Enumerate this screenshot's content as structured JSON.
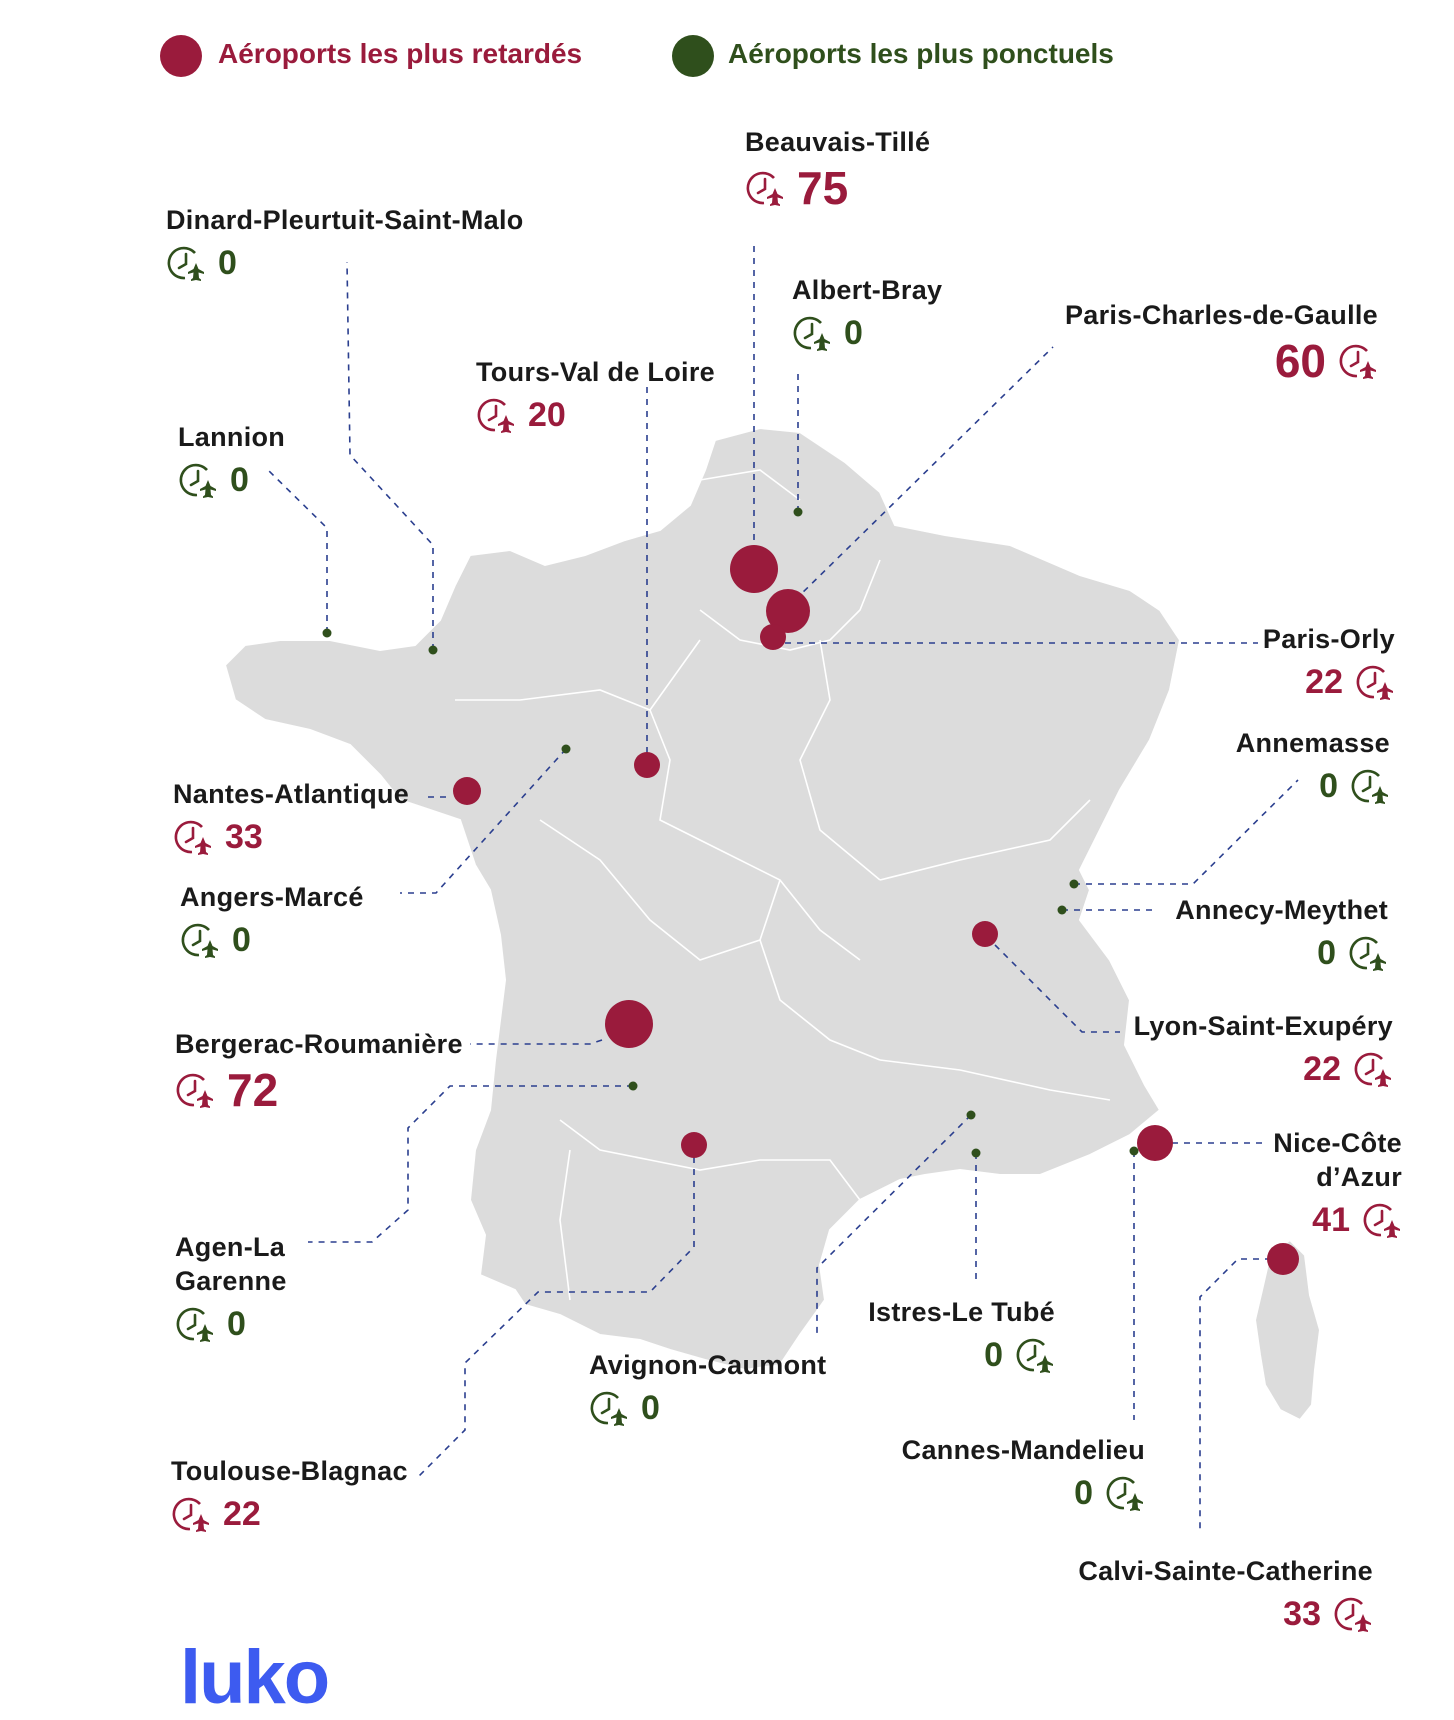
{
  "legend": {
    "delayed_label": "Aéroports les plus retardés",
    "punctual_label": "Aéroports les plus ponctuels",
    "delayed_color": "#9a1b3c",
    "punctual_color": "#2f4f1c"
  },
  "logo": "luko",
  "airports": [
    {
      "id": "beauvais",
      "name": "Beauvais-Tillé",
      "value": "75",
      "type": "delayed"
    },
    {
      "id": "dinard",
      "name": "Dinard-Pleurtuit-Saint-Malo",
      "value": "0",
      "type": "punctual"
    },
    {
      "id": "albert",
      "name": "Albert-Bray",
      "value": "0",
      "type": "punctual"
    },
    {
      "id": "cdg",
      "name": "Paris-Charles-de-Gaulle",
      "value": "60",
      "type": "delayed"
    },
    {
      "id": "tours",
      "name": "Tours-Val de Loire",
      "value": "20",
      "type": "delayed"
    },
    {
      "id": "lannion",
      "name": "Lannion",
      "value": "0",
      "type": "punctual"
    },
    {
      "id": "orly",
      "name": "Paris-Orly",
      "value": "22",
      "type": "delayed"
    },
    {
      "id": "annemasse",
      "name": "Annemasse",
      "value": "0",
      "type": "punctual"
    },
    {
      "id": "nantes",
      "name": "Nantes-Atlantique",
      "value": "33",
      "type": "delayed"
    },
    {
      "id": "angers",
      "name": "Angers-Marcé",
      "value": "0",
      "type": "punctual"
    },
    {
      "id": "annecy",
      "name": "Annecy-Meythet",
      "value": "0",
      "type": "punctual"
    },
    {
      "id": "lyon",
      "name": "Lyon-Saint-Exupéry",
      "value": "22",
      "type": "delayed"
    },
    {
      "id": "bergerac",
      "name": "Bergerac-Roumanière",
      "value": "72",
      "type": "delayed"
    },
    {
      "id": "nice",
      "name": "Nice-Côte d’Azur",
      "value": "41",
      "type": "delayed"
    },
    {
      "id": "agen",
      "name": "Agen-La Garenne",
      "value": "0",
      "type": "punctual"
    },
    {
      "id": "istres",
      "name": "Istres-Le Tubé",
      "value": "0",
      "type": "punctual"
    },
    {
      "id": "avignon",
      "name": "Avignon-Caumont",
      "value": "0",
      "type": "punctual"
    },
    {
      "id": "cannes",
      "name": "Cannes-Mandelieu",
      "value": "0",
      "type": "punctual"
    },
    {
      "id": "toulouse",
      "name": "Toulouse-Blagnac",
      "value": "22",
      "type": "delayed"
    },
    {
      "id": "calvi",
      "name": "Calvi-Sainte-Catherine",
      "value": "33",
      "type": "delayed"
    }
  ]
}
